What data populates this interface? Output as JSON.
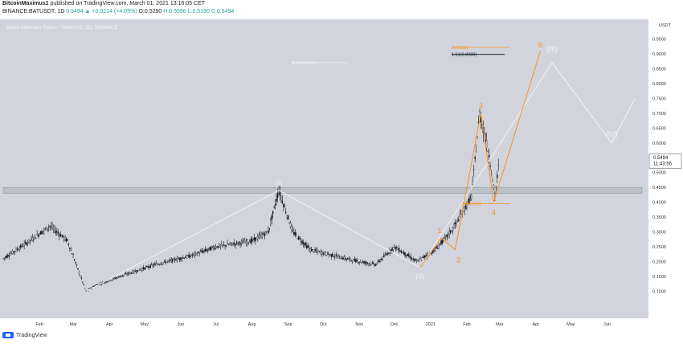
{
  "header": {
    "author": "BitcoinMaximus1",
    "published_text": "published on TradingView.com, March 01, 2021 13:16:05 CET",
    "symbol_line": "BINANCE:BATUSDT, 1D",
    "price": "0.5494",
    "change": "▲ +0.0214 (+4.05%)",
    "o": "O:0.5290",
    "h": "H:0.5596",
    "l": "L:0.5190",
    "c": "C:0.5494"
  },
  "footer": {
    "logo_text": "TradingView"
  },
  "chart_data": {
    "type": "line",
    "title": "Basic Attention Token / TetherUS, 1D, BINANCE",
    "y_unit": "USDT",
    "ylim": [
      0.02,
      1.0
    ],
    "y_ticks": [
      "0.1000",
      "0.1500",
      "0.2000",
      "0.2500",
      "0.3000",
      "0.3500",
      "0.4000",
      "0.4500",
      "0.5000",
      "0.5500",
      "0.6000",
      "0.6500",
      "0.7000",
      "0.7500",
      "0.8000",
      "0.8500",
      "0.9000",
      "0.9500"
    ],
    "x_ticks": [
      "Feb",
      "Mar",
      "Apr",
      "May",
      "Jun",
      "Jul",
      "Aug",
      "Sep",
      "Oct",
      "Nov",
      "Dec",
      "2021",
      "Feb",
      "Mar",
      "Apr",
      "May",
      "Jun"
    ],
    "last_price": "0.5494",
    "countdown": "11:43:56",
    "colors": {
      "background": "#d1d4dc",
      "candle": "#131722",
      "wave_white": "#f0f3fa",
      "wave_orange": "#f7931a",
      "zone": "#bcc0c8"
    },
    "price_series": [
      {
        "x": "2020-01-01",
        "y": 0.21
      },
      {
        "x": "2020-01-20",
        "y": 0.26
      },
      {
        "x": "2020-02-10",
        "y": 0.32
      },
      {
        "x": "2020-02-25",
        "y": 0.27
      },
      {
        "x": "2020-03-12",
        "y": 0.1
      },
      {
        "x": "2020-03-20",
        "y": 0.12
      },
      {
        "x": "2020-04-10",
        "y": 0.15
      },
      {
        "x": "2020-05-10",
        "y": 0.19
      },
      {
        "x": "2020-06-10",
        "y": 0.22
      },
      {
        "x": "2020-07-01",
        "y": 0.25
      },
      {
        "x": "2020-08-01",
        "y": 0.27
      },
      {
        "x": "2020-08-15",
        "y": 0.3
      },
      {
        "x": "2020-08-24",
        "y": 0.44
      },
      {
        "x": "2020-09-05",
        "y": 0.3
      },
      {
        "x": "2020-09-20",
        "y": 0.24
      },
      {
        "x": "2020-10-20",
        "y": 0.21
      },
      {
        "x": "2020-11-15",
        "y": 0.19
      },
      {
        "x": "2020-12-01",
        "y": 0.25
      },
      {
        "x": "2020-12-20",
        "y": 0.2
      },
      {
        "x": "2021-01-05",
        "y": 0.24
      },
      {
        "x": "2021-01-20",
        "y": 0.31
      },
      {
        "x": "2021-02-05",
        "y": 0.42
      },
      {
        "x": "2021-02-12",
        "y": 0.7
      },
      {
        "x": "2021-02-20",
        "y": 0.56
      },
      {
        "x": "2021-02-25",
        "y": 0.42
      },
      {
        "x": "2021-03-01",
        "y": 0.5494
      }
    ],
    "white_wave": {
      "labels": [
        "(I)",
        "(II)",
        "(III)",
        "(IV)"
      ],
      "points": [
        {
          "x": "2020-03-12",
          "y": 0.1
        },
        {
          "x": "2020-08-24",
          "y": 0.44
        },
        {
          "x": "2020-12-23",
          "y": 0.18
        },
        {
          "x": "2021-04-15",
          "y": 0.87
        },
        {
          "x": "2021-06-05",
          "y": 0.6
        },
        {
          "x": "2021-06-25",
          "y": 0.75
        }
      ]
    },
    "orange_wave": {
      "labels": [
        "1",
        "2",
        "3",
        "4",
        "5"
      ],
      "points": [
        {
          "x": "2020-12-23",
          "y": 0.18
        },
        {
          "x": "2021-01-10",
          "y": 0.28
        },
        {
          "x": "2021-01-22",
          "y": 0.24
        },
        {
          "x": "2021-02-13",
          "y": 0.7
        },
        {
          "x": "2021-02-24",
          "y": 0.4
        },
        {
          "x": "2021-04-05",
          "y": 0.91
        }
      ]
    },
    "fib_levels": [
      {
        "label": "1(0.3952)",
        "y": 0.3952,
        "color": "#f7931a"
      },
      {
        "label": "1.61(0.8980)",
        "y": 0.898,
        "color": "#131722"
      },
      {
        "label": "(0.9219)",
        "y": 0.9219,
        "color": "#f7931a"
      },
      {
        "label": "2.61(0.8702)",
        "y": 0.8702,
        "color": "#f0f3fa"
      }
    ],
    "support_zone": [
      0.43,
      0.45
    ]
  }
}
